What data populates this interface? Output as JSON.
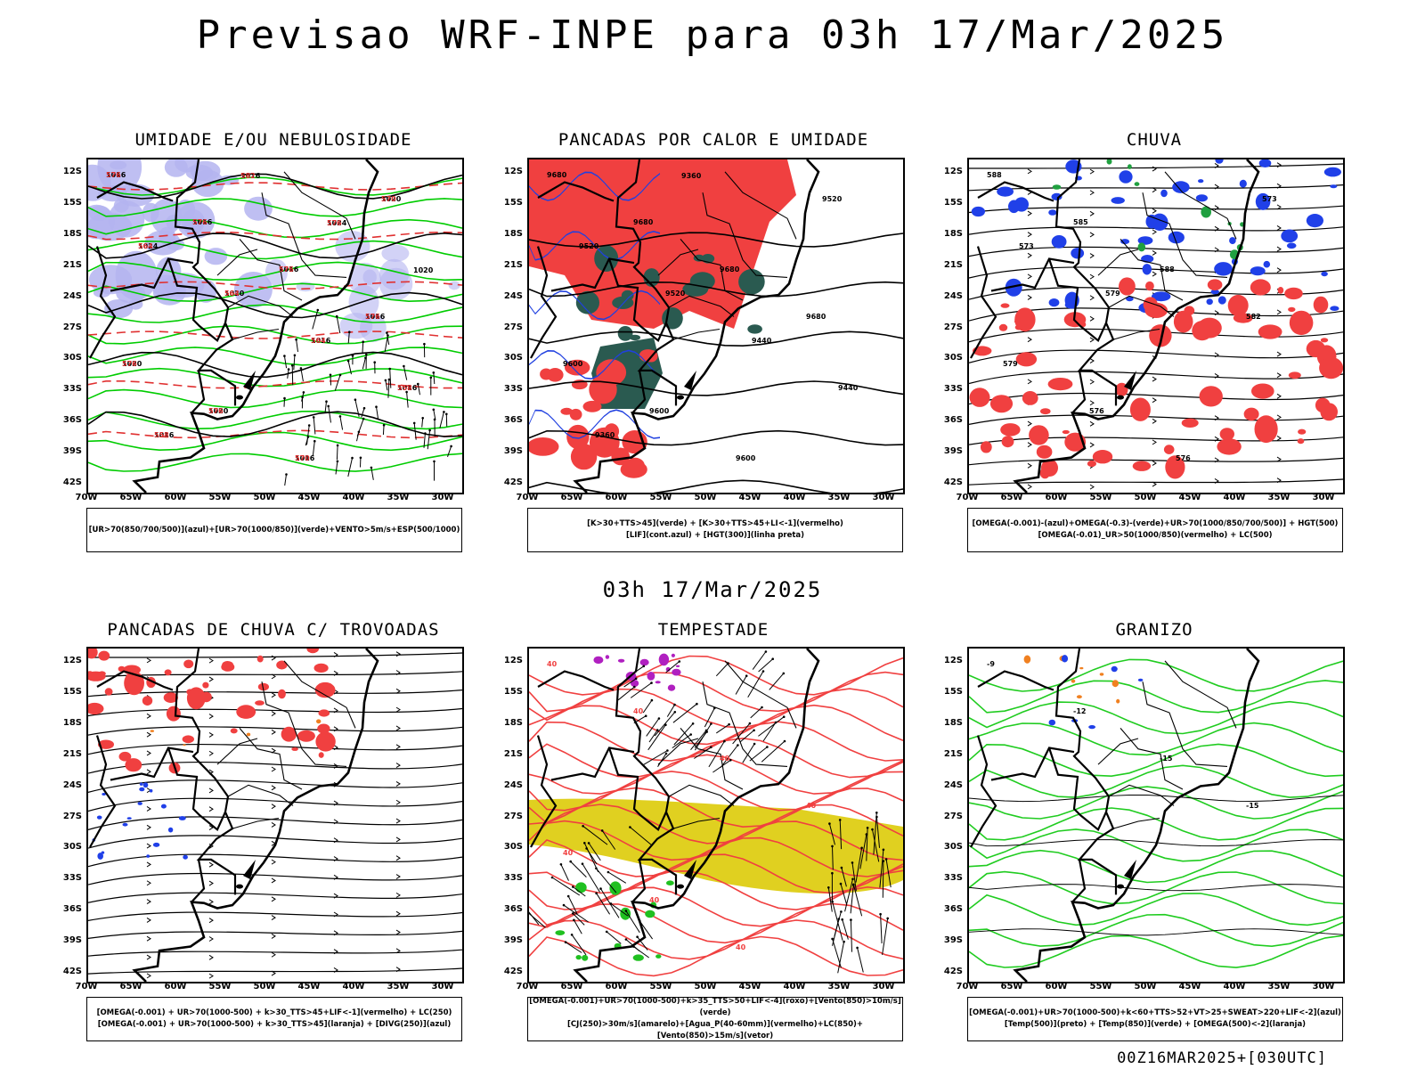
{
  "title": "Previsao WRF-INPE  para 03h 17/Mar/2025",
  "mid_title": "03h 17/Mar/2025",
  "footer": "00Z16MAR2025+[030UTC]",
  "lat_labels": [
    "12S",
    "15S",
    "18S",
    "21S",
    "24S",
    "27S",
    "30S",
    "33S",
    "36S",
    "39S",
    "42S"
  ],
  "lon_labels": [
    "70W",
    "65W",
    "60W",
    "55W",
    "50W",
    "45W",
    "40W",
    "35W",
    "30W"
  ],
  "panels": [
    {
      "title": "UMIDADE E/OU NEBULOSIDADE",
      "legend": [
        "[UR>70(850/700/500)](azul)+[UR>70(1000/850)](verde)+VENTO>5m/s+ESP(500/1000)"
      ],
      "contour_labels": [
        "1016",
        "1016",
        "1016",
        "1016",
        "1020",
        "1020",
        "1016",
        "1020",
        "1024",
        "1020",
        "1016",
        "1016",
        "1016",
        "1016",
        "1024",
        "1020"
      ],
      "red_labels": [
        "576",
        "576",
        "576",
        "576",
        "576",
        "576",
        "570",
        "570",
        "564",
        "564",
        "564",
        "558",
        "558",
        "582",
        "576"
      ],
      "colors": {
        "blue": "#b4b4f0",
        "green": "#00cc00",
        "red": "#e03030",
        "black": "#000000"
      }
    },
    {
      "title": "PANCADAS POR CALOR E UMIDADE",
      "legend": [
        "[K>30+TTS>45](verde) + [K>30+TTS>45+LI<-1](vermelho)",
        "[LIF](cont.azul) + [HGT(300)](linha preta)"
      ],
      "contour_labels": [
        "9680",
        "9680",
        "9680",
        "9680",
        "9600",
        "9600",
        "9600",
        "9520",
        "9520",
        "9520",
        "9440",
        "9440",
        "9360",
        "9360"
      ],
      "colors": {
        "red": "#f04040",
        "darkgreen": "#2a5a50",
        "blue": "#2040e0"
      }
    },
    {
      "title": "CHUVA",
      "legend": [
        "[OMEGA(-0.001)-(azul)+OMEGA(-0.3)-(verde)+UR>70(1000/850/700/500)] + HGT(500)",
        "[OMEGA(-0.01)_UR>50(1000/850)(vermelho) + LC(500)"
      ],
      "contour_labels": [
        "588",
        "585",
        "588",
        "582",
        "579",
        "576",
        "576",
        "573",
        "573",
        "579"
      ],
      "colors": {
        "blue": "#2040e8",
        "green": "#20a040",
        "red": "#f04040"
      }
    },
    {
      "title": "PANCADAS DE CHUVA C/ TROVOADAS",
      "legend": [
        "[OMEGA(-0.001) + UR>70(1000-500) + k>30_TTS>45+LIF<-1](vermelho) + LC(250)",
        "[OMEGA(-0.001) + UR>70(1000-500) + k>30_TTS>45](laranja) + [DIVG(250)](azul)"
      ],
      "colors": {
        "red": "#f04040",
        "blue": "#2040e8",
        "orange": "#f08020"
      }
    },
    {
      "title": "TEMPESTADE",
      "legend": [
        "[OMEGA(-0.001)+UR>70(1000-500)+k>35_TTS>50+LIF<-4](roxo)+[Vento(850)>10m/s](verde)",
        "[CJ(250)>30m/s](amarelo)+[Agua_P(40-60mm)](vermelho)+LC(850)+[Vento(850)>15m/s](vetor)"
      ],
      "contour_labels": [
        "40",
        "40",
        "40",
        "40",
        "40",
        "40",
        "40"
      ],
      "colors": {
        "yellow": "#e0d020",
        "red": "#f04040",
        "purple": "#b020c0",
        "green": "#20c020"
      }
    },
    {
      "title": "GRANIZO",
      "legend": [
        "[OMEGA(-0.001)+UR>70(1000-500)+k<60+TTS>52+VT>25+SWEAT>220+LIF<-2](azul)",
        "[Temp(500)](preto) + [Temp(850)](verde) + [OMEGA(500)<-2](laranja)"
      ],
      "contour_labels": [
        "-9",
        "-12",
        "-15",
        "-15"
      ],
      "colors": {
        "green": "#20cc20",
        "orange": "#f08020",
        "blue": "#2040e8"
      }
    }
  ]
}
